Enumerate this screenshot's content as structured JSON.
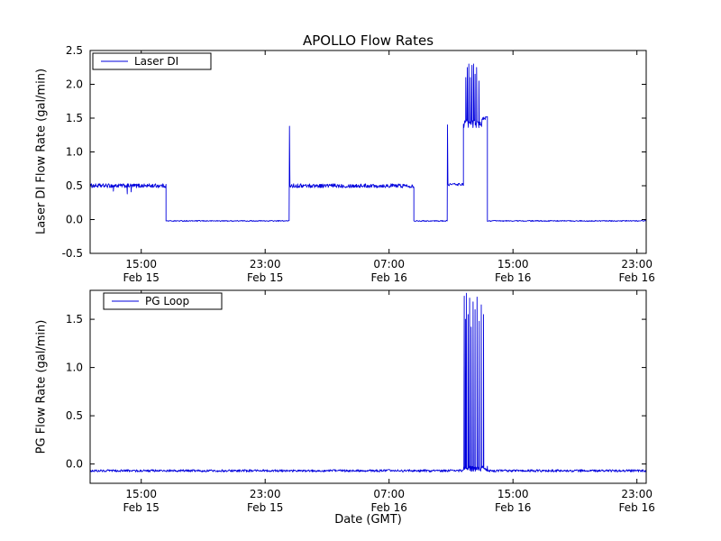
{
  "figure": {
    "title": "APOLLO Flow Rates",
    "xlabel": "Date (GMT)",
    "background_color": "#ffffff",
    "line_color": "#0000dd"
  },
  "chart_data": [
    {
      "type": "line",
      "title": "APOLLO Flow Rates",
      "ylabel": "Laser DI Flow Rate (gal/min)",
      "xlabel": "",
      "legend": {
        "label": "Laser DI",
        "position": "upper-left"
      },
      "grid": false,
      "x_unit": "hours since Feb 15 00:00 GMT",
      "xlim": [
        11.7,
        47.6
      ],
      "ylim": [
        -0.5,
        2.5
      ],
      "yticks": [
        -0.5,
        0.0,
        0.5,
        1.0,
        1.5,
        2.0,
        2.5
      ],
      "xticks": [
        {
          "x": 15,
          "time": "15:00",
          "date": "Feb 15"
        },
        {
          "x": 23,
          "time": "23:00",
          "date": "Feb 15"
        },
        {
          "x": 31,
          "time": "07:00",
          "date": "Feb 16"
        },
        {
          "x": 39,
          "time": "15:00",
          "date": "Feb 16"
        },
        {
          "x": 47,
          "time": "23:00",
          "date": "Feb 16"
        }
      ],
      "segments": [
        {
          "x0": 11.7,
          "x1": 16.6,
          "y": 0.5,
          "noise": 0.03
        },
        {
          "x0": 16.6,
          "x1": 24.55,
          "y": -0.02,
          "noise": 0.007
        },
        {
          "x0": 24.6,
          "x1": 32.6,
          "y": 0.5,
          "noise": 0.03
        },
        {
          "x0": 32.6,
          "x1": 34.75,
          "y": -0.02,
          "noise": 0.007
        },
        {
          "x0": 34.8,
          "x1": 35.8,
          "y": 0.52,
          "noise": 0.02
        },
        {
          "x0": 35.8,
          "x1": 37.0,
          "y": 1.42,
          "noise": 0.06
        },
        {
          "x0": 37.0,
          "x1": 37.35,
          "y": 1.5,
          "noise": 0.025
        },
        {
          "x0": 37.35,
          "x1": 47.6,
          "y": -0.02,
          "noise": 0.007
        }
      ],
      "spikes": [
        {
          "x": 13.2,
          "y": 0.42
        },
        {
          "x": 14.1,
          "y": 0.38
        },
        {
          "x": 14.35,
          "y": 0.41
        },
        {
          "x": 24.57,
          "y": 1.38
        },
        {
          "x": 34.77,
          "y": 1.4
        },
        {
          "x": 35.95,
          "y": 2.1
        },
        {
          "x": 36.05,
          "y": 2.25
        },
        {
          "x": 36.15,
          "y": 2.3
        },
        {
          "x": 36.25,
          "y": 2.1
        },
        {
          "x": 36.35,
          "y": 2.28
        },
        {
          "x": 36.45,
          "y": 2.3
        },
        {
          "x": 36.55,
          "y": 2.15
        },
        {
          "x": 36.65,
          "y": 2.25
        },
        {
          "x": 36.8,
          "y": 2.05
        }
      ]
    },
    {
      "type": "line",
      "title": "",
      "ylabel": "PG Flow Rate (gal/min)",
      "xlabel": "Date (GMT)",
      "legend": {
        "label": "PG Loop",
        "position": "upper-left"
      },
      "grid": false,
      "x_unit": "hours since Feb 15 00:00 GMT",
      "xlim": [
        11.7,
        47.6
      ],
      "ylim": [
        -0.2,
        1.8
      ],
      "yticks": [
        0.0,
        0.5,
        1.0,
        1.5
      ],
      "xticks": [
        {
          "x": 15,
          "time": "15:00",
          "date": "Feb 15"
        },
        {
          "x": 23,
          "time": "23:00",
          "date": "Feb 15"
        },
        {
          "x": 31,
          "time": "07:00",
          "date": "Feb 16"
        },
        {
          "x": 39,
          "time": "15:00",
          "date": "Feb 16"
        },
        {
          "x": 47,
          "time": "23:00",
          "date": "Feb 16"
        }
      ],
      "segments": [
        {
          "x0": 11.7,
          "x1": 35.8,
          "y": -0.07,
          "noise": 0.012
        },
        {
          "x0": 35.8,
          "x1": 37.35,
          "y": -0.05,
          "noise": 0.03
        },
        {
          "x0": 37.35,
          "x1": 47.6,
          "y": -0.07,
          "noise": 0.012
        }
      ],
      "spikes": [
        {
          "x": 35.85,
          "y": 1.74
        },
        {
          "x": 35.93,
          "y": 1.5
        },
        {
          "x": 36.0,
          "y": 1.77
        },
        {
          "x": 36.1,
          "y": 1.55
        },
        {
          "x": 36.2,
          "y": 1.72
        },
        {
          "x": 36.3,
          "y": 1.42
        },
        {
          "x": 36.42,
          "y": 1.68
        },
        {
          "x": 36.55,
          "y": 1.6
        },
        {
          "x": 36.68,
          "y": 1.73
        },
        {
          "x": 36.82,
          "y": 1.48
        },
        {
          "x": 36.95,
          "y": 1.65
        },
        {
          "x": 37.1,
          "y": 1.55
        }
      ]
    }
  ]
}
